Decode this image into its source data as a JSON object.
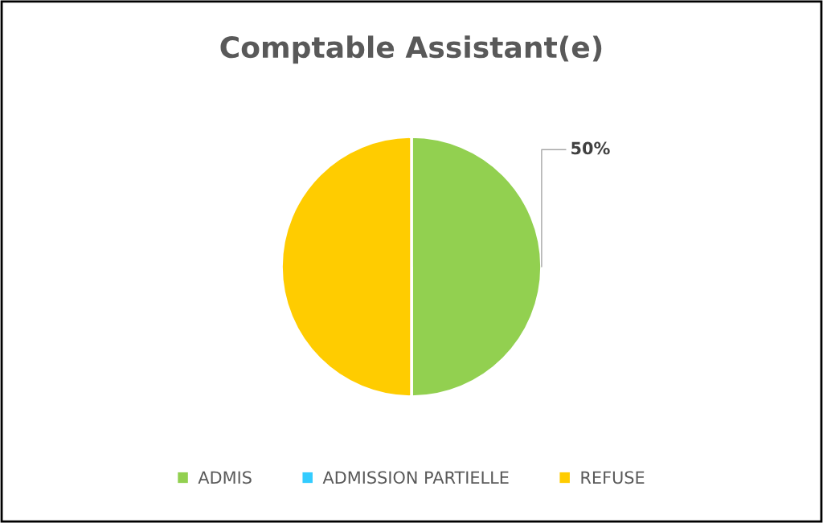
{
  "chart_data": {
    "type": "pie",
    "title": "Comptable Assistant(e)",
    "categories": [
      "ADMIS",
      "ADMISSION PARTIELLE",
      "REFUSE"
    ],
    "values": [
      50,
      0,
      50
    ],
    "colors": [
      "#92d050",
      "#33ccff",
      "#ffcc00"
    ],
    "value_labels": [
      "50%",
      null,
      null
    ],
    "legend": "bottom"
  }
}
